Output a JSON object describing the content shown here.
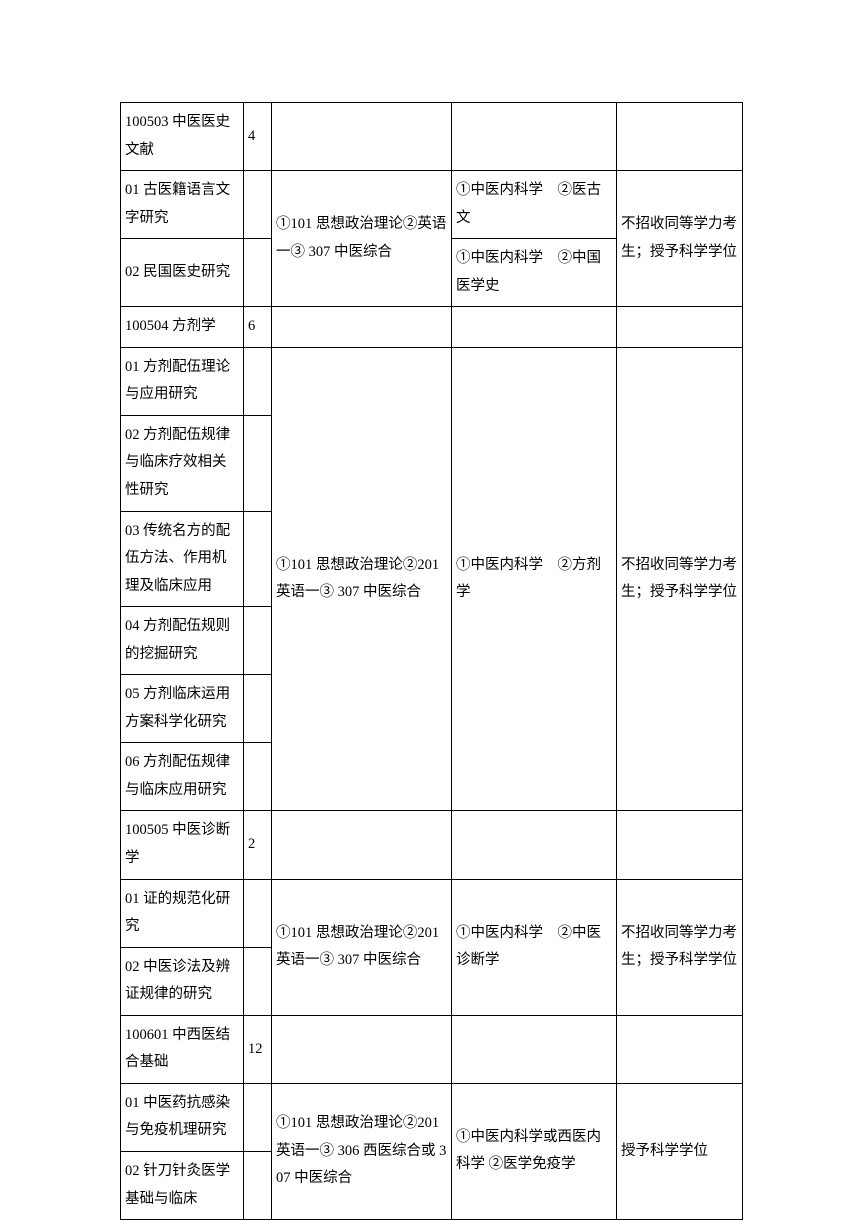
{
  "rows": [
    {
      "c1": "100503 中医医史文献",
      "c2": "4",
      "c3": "",
      "c4": "",
      "c5": ""
    },
    {
      "c1": "01 古医籍语言文字研究",
      "c2": "",
      "c3": "①101 思想政治理论②英语一③ 307 中医综合",
      "c3_rowspan": 2,
      "c4": "①中医内科学　②医古文",
      "c5": "不招收同等学力考生；授予科学学位",
      "c5_rowspan": 2
    },
    {
      "c1": "02 民国医史研究",
      "c2": "",
      "c4": "①中医内科学　②中国医学史"
    },
    {
      "c1": "100504  方剂学",
      "c2": "6",
      "c3": "",
      "c4": "",
      "c5": ""
    },
    {
      "c1": "01 方剂配伍理论与应用研究",
      "c2": "",
      "c3": "①101 思想政治理论②201 英语一③ 307 中医综合",
      "c3_rowspan": 6,
      "c4": "①中医内科学　②方剂学",
      "c4_rowspan": 6,
      "c5": "不招收同等学力考生；授予科学学位",
      "c5_rowspan": 6
    },
    {
      "c1": "02 方剂配伍规律与临床疗效相关性研究",
      "c2": ""
    },
    {
      "c1": "03 传统名方的配伍方法、作用机理及临床应用",
      "c2": ""
    },
    {
      "c1": "04 方剂配伍规则的挖掘研究",
      "c2": ""
    },
    {
      "c1": "05 方剂临床运用方案科学化研究",
      "c2": ""
    },
    {
      "c1": "06 方剂配伍规律与临床应用研究",
      "c2": ""
    },
    {
      "c1": "100505 中医诊断学",
      "c2": "2",
      "c3": "",
      "c4": "",
      "c5": ""
    },
    {
      "c1": "01 证的规范化研究",
      "c2": "",
      "c3": "①101 思想政治理论②201 英语一③ 307 中医综合",
      "c3_rowspan": 2,
      "c4": "①中医内科学　②中医诊断学",
      "c4_rowspan": 2,
      "c5": "不招收同等学力考生；授予科学学位",
      "c5_rowspan": 2
    },
    {
      "c1": "02 中医诊法及辨证规律的研究",
      "c2": ""
    },
    {
      "c1": "100601  中西医结合基础",
      "c2": "12",
      "c3": "",
      "c4": "",
      "c5": ""
    },
    {
      "c1": "01 中医药抗感染与免疫机理研究",
      "c2": "",
      "c3": "①101 思想政治理论②201 英语一③ 306 西医综合或  307 中医综合",
      "c3_rowspan": 2,
      "c4": "①中医内科学或西医内科学  ②医学免疫学",
      "c4_rowspan": 2,
      "c5": "授予科学学位",
      "c5_rowspan": 2
    },
    {
      "c1": "02 针刀针灸医学基础与临床",
      "c2": ""
    }
  ]
}
